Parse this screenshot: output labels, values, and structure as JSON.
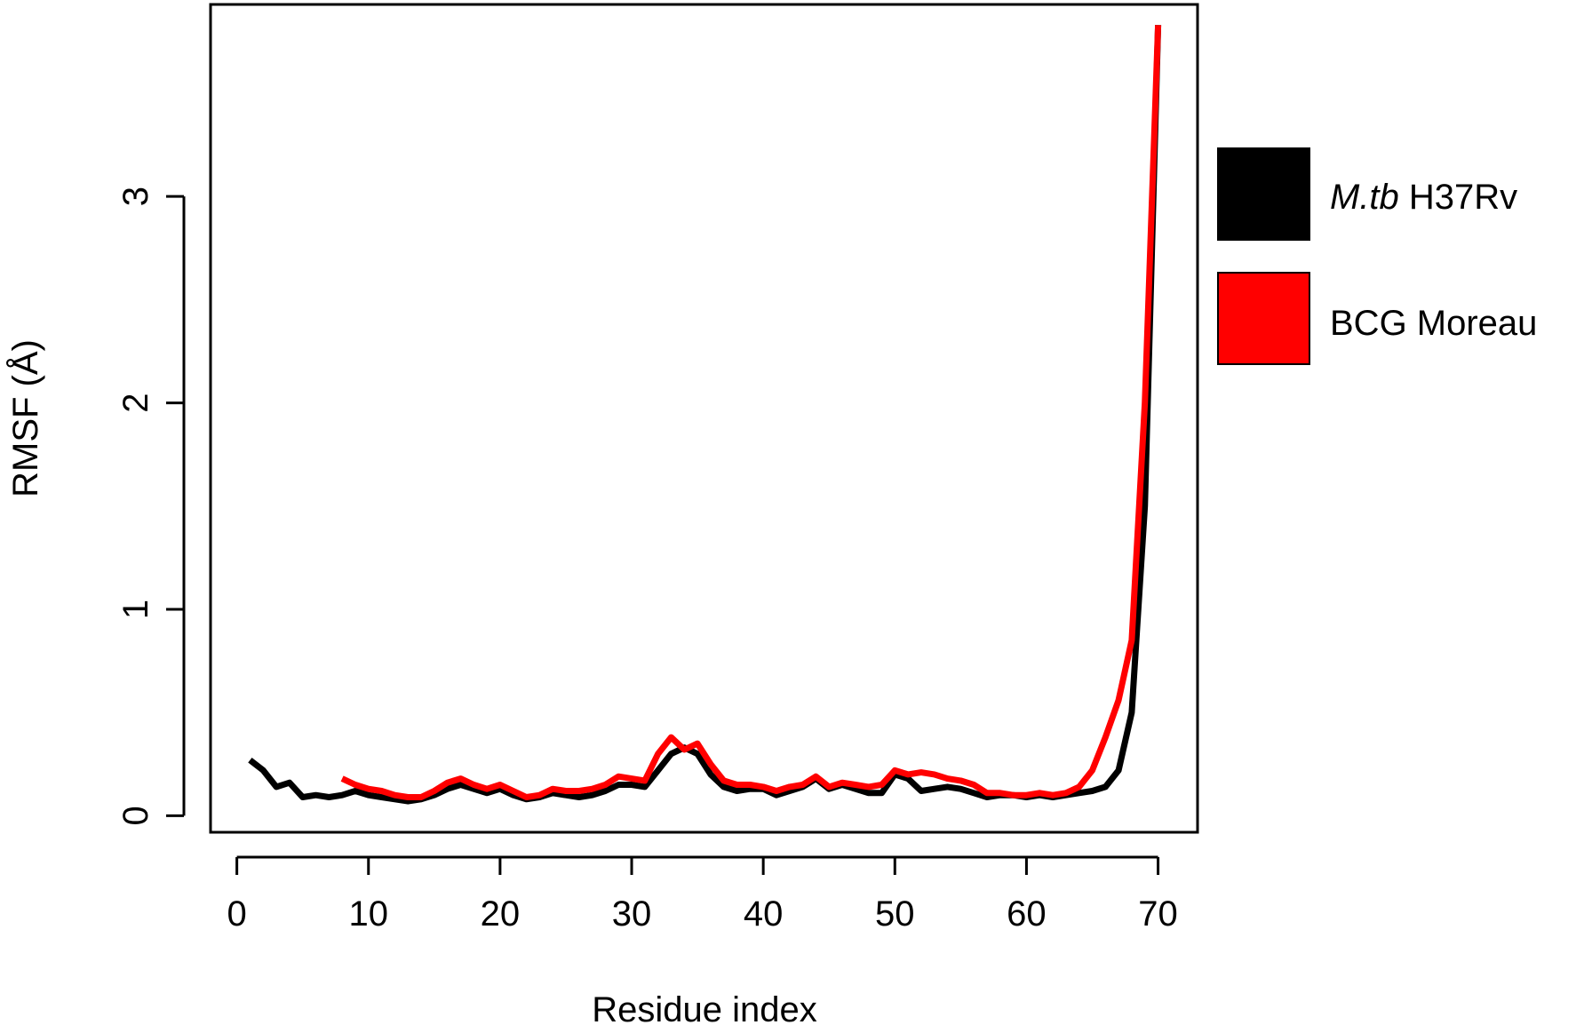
{
  "chart_data": {
    "type": "line",
    "title": "",
    "xlabel": "Residue index",
    "ylabel": "RMSF (Å)",
    "xlim": [
      -2,
      73
    ],
    "ylim": [
      -0.08,
      3.93
    ],
    "xticks": [
      0,
      10,
      20,
      30,
      40,
      50,
      60,
      70
    ],
    "yticks": [
      0,
      1,
      2,
      3
    ],
    "grid": false,
    "legend_position": "right, outside plot",
    "series": [
      {
        "name_italic": "M.tb",
        "name_rest": " H37Rv",
        "color": "#000000",
        "x": [
          1,
          2,
          3,
          4,
          5,
          6,
          7,
          8,
          9,
          10,
          11,
          12,
          13,
          14,
          15,
          16,
          17,
          18,
          19,
          20,
          21,
          22,
          23,
          24,
          25,
          26,
          27,
          28,
          29,
          30,
          31,
          32,
          33,
          34,
          35,
          36,
          37,
          38,
          39,
          40,
          41,
          42,
          43,
          44,
          45,
          46,
          47,
          48,
          49,
          50,
          51,
          52,
          53,
          54,
          55,
          56,
          57,
          58,
          59,
          60,
          61,
          62,
          63,
          64,
          65,
          66,
          67,
          68,
          69,
          70
        ],
        "y": [
          0.27,
          0.22,
          0.14,
          0.16,
          0.09,
          0.1,
          0.09,
          0.1,
          0.12,
          0.1,
          0.09,
          0.08,
          0.07,
          0.08,
          0.1,
          0.13,
          0.15,
          0.13,
          0.11,
          0.13,
          0.1,
          0.08,
          0.09,
          0.11,
          0.1,
          0.09,
          0.1,
          0.12,
          0.15,
          0.15,
          0.14,
          0.22,
          0.3,
          0.33,
          0.3,
          0.2,
          0.14,
          0.12,
          0.13,
          0.13,
          0.1,
          0.12,
          0.14,
          0.18,
          0.13,
          0.15,
          0.13,
          0.11,
          0.11,
          0.2,
          0.18,
          0.12,
          0.13,
          0.14,
          0.13,
          0.11,
          0.09,
          0.1,
          0.1,
          0.09,
          0.1,
          0.09,
          0.1,
          0.11,
          0.12,
          0.14,
          0.22,
          0.5,
          1.5,
          3.83
        ]
      },
      {
        "name": "BCG Moreau",
        "color": "#ff0000",
        "x": [
          8,
          9,
          10,
          11,
          12,
          13,
          14,
          15,
          16,
          17,
          18,
          19,
          20,
          21,
          22,
          23,
          24,
          25,
          26,
          27,
          28,
          29,
          30,
          31,
          32,
          33,
          34,
          35,
          36,
          37,
          38,
          39,
          40,
          41,
          42,
          43,
          44,
          45,
          46,
          47,
          48,
          49,
          50,
          51,
          52,
          53,
          54,
          55,
          56,
          57,
          58,
          59,
          60,
          61,
          62,
          63,
          64,
          65,
          66,
          67,
          68,
          69,
          70
        ],
        "y": [
          0.18,
          0.15,
          0.13,
          0.12,
          0.1,
          0.09,
          0.09,
          0.12,
          0.16,
          0.18,
          0.15,
          0.13,
          0.15,
          0.12,
          0.09,
          0.1,
          0.13,
          0.12,
          0.12,
          0.13,
          0.15,
          0.19,
          0.18,
          0.17,
          0.3,
          0.38,
          0.32,
          0.35,
          0.25,
          0.17,
          0.15,
          0.15,
          0.14,
          0.12,
          0.14,
          0.15,
          0.19,
          0.14,
          0.16,
          0.15,
          0.14,
          0.15,
          0.22,
          0.2,
          0.21,
          0.2,
          0.18,
          0.17,
          0.15,
          0.11,
          0.11,
          0.1,
          0.1,
          0.11,
          0.1,
          0.11,
          0.14,
          0.22,
          0.38,
          0.56,
          0.85,
          2.0,
          3.83
        ]
      }
    ]
  }
}
